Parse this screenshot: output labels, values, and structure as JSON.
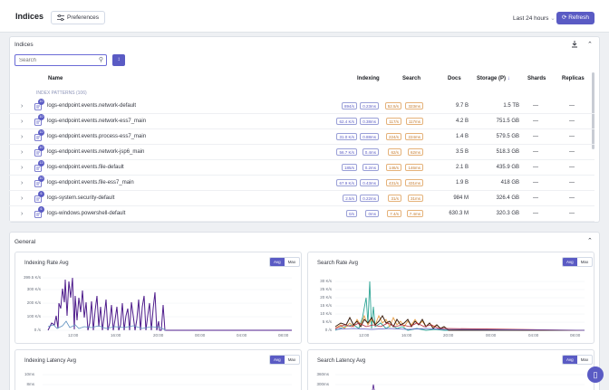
{
  "header": {
    "title": "Indices",
    "preferences_label": "Preferences",
    "time_range": "Last 24 hours",
    "refresh_label": "Refresh"
  },
  "indices_panel": {
    "title": "Indices",
    "search_placeholder": "Search",
    "columns": {
      "name": "Name",
      "indexing": "Indexing",
      "search": "Search",
      "docs": "Docs",
      "storage": "Storage (P)",
      "shards": "Shards",
      "replicas": "Replicas"
    },
    "patterns_label": "INDEX PATTERNS (106)",
    "rows": [
      {
        "badge": "10",
        "name": "logs-endpoint.events.network-default",
        "idx_rate": "894/s",
        "idx_lat": "0.23ms",
        "srch_rate": "52.5/s",
        "srch_lat": "323ms",
        "docs": "9.7 B",
        "storage": "1.5 TB",
        "shards": "—",
        "replicas": "—"
      },
      {
        "badge": "10",
        "name": "logs-endpoint.events.network-ess7_main",
        "idx_rate": "62.4 K/s",
        "idx_lat": "0.38ms",
        "srch_rate": "117/s",
        "srch_lat": "117ms",
        "docs": "4.2 B",
        "storage": "751.5 GB",
        "shards": "—",
        "replicas": "—"
      },
      {
        "badge": "10",
        "name": "logs-endpoint.events.process-ess7_main",
        "idx_rate": "31.0 K/s",
        "idx_lat": "0.88ms",
        "srch_rate": "224/s",
        "srch_lat": "224ms",
        "docs": "1.4 B",
        "storage": "579.5 GB",
        "shards": "—",
        "replicas": "—"
      },
      {
        "badge": "10",
        "name": "logs-endpoint.events.network-jsp6_main",
        "idx_rate": "56.7 K/s",
        "idx_lat": "0.4ms",
        "srch_rate": "62/s",
        "srch_lat": "62ms",
        "docs": "3.5 B",
        "storage": "518.3 GB",
        "shards": "—",
        "replicas": "—"
      },
      {
        "badge": "13",
        "name": "logs-endpoint.events.file-default",
        "idx_rate": "185/s",
        "idx_lat": "0.2ms",
        "srch_rate": "146/s",
        "srch_lat": "146ms",
        "docs": "2.1 B",
        "storage": "435.9 GB",
        "shards": "—",
        "replicas": "—"
      },
      {
        "badge": "10",
        "name": "logs-endpoint.events.file-ess7_main",
        "idx_rate": "67.9 K/s",
        "idx_lat": "0.43ms",
        "srch_rate": "431/s",
        "srch_lat": "431ms",
        "docs": "1.9 B",
        "storage": "418 GB",
        "shards": "—",
        "replicas": "—"
      },
      {
        "badge": "6",
        "name": "logs-system.security-default",
        "idx_rate": "2.5/s",
        "idx_lat": "0.22ms",
        "srch_rate": "31/s",
        "srch_lat": "31ms",
        "docs": "984 M",
        "storage": "326.4 GB",
        "shards": "—",
        "replicas": "—"
      },
      {
        "badge": "6",
        "name": "logs-windows.powershell-default",
        "idx_rate": "0/s",
        "idx_lat": "0ms",
        "srch_rate": "7.4/s",
        "srch_lat": "7.4ms",
        "docs": "630.3 M",
        "storage": "320.3 GB",
        "shards": "—",
        "replicas": "—"
      }
    ]
  },
  "general_panel": {
    "title": "General"
  },
  "charts": {
    "indexing_rate": {
      "title": "Indexing Rate Avg",
      "toggle": [
        "Avg",
        "Max"
      ],
      "yticks": [
        "399.5 K/s",
        "300 K/s",
        "200 K/s",
        "100 K/s",
        "0 /s"
      ],
      "xticks": [
        "12:00",
        "16:00",
        "20:00",
        "00:00",
        "04:00",
        "08:00"
      ]
    },
    "search_rate": {
      "title": "Search Rate Avg",
      "toggle": [
        "Avg",
        "Max"
      ],
      "yticks": [
        "30 K/s",
        "25 K/s",
        "20 K/s",
        "15 K/s",
        "10 K/s",
        "5 K/s",
        "0 /s"
      ],
      "xticks": [
        "12:00",
        "16:00",
        "20:00",
        "00:00",
        "04:00",
        "08:00"
      ]
    },
    "indexing_latency": {
      "title": "Indexing Latency Avg",
      "toggle": [
        "Avg",
        "Max"
      ],
      "yticks": [
        "10ms",
        "8ms"
      ]
    },
    "search_latency": {
      "title": "Search Latency Avg",
      "toggle": [
        "Avg",
        "Max"
      ],
      "yticks": [
        "360ms",
        "300ms"
      ]
    }
  },
  "colors": {
    "accent": "#5a5bc4",
    "series_purple": "#4f1d8c",
    "series_blue": "#6092c0",
    "series_teal": "#2ea595",
    "series_orange": "#e7a04a",
    "series_dark": "#3a1f10",
    "series_red": "#b3263a"
  }
}
